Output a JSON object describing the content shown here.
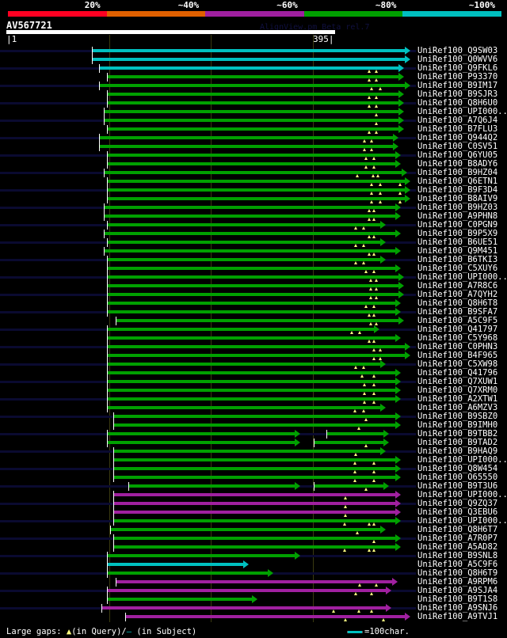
{
  "identity_scale": [
    {
      "label": "20%",
      "color": "#ff0022"
    },
    {
      "label": "~40%",
      "color": "#e06000"
    },
    {
      "label": "~60%",
      "color": "#a020a0"
    },
    {
      "label": "~80%",
      "color": "#00a000"
    },
    {
      "label": "~100%",
      "color": "#00c0c0"
    }
  ],
  "query": {
    "name": "AV567721",
    "start": "1",
    "end": "395"
  },
  "version_text": "AlignView.pm Beta rel.7",
  "legend": {
    "prefix": "Large gaps: ",
    "query_symbol": "▲",
    "query_text": "(in Query)/",
    "subject_symbol": "—",
    "subject_text": " (in Subject)",
    "scale_label": "=100char."
  },
  "colors": {
    "cyan": "#00c0c0",
    "green": "#00a000",
    "magenta": "#a020a0"
  },
  "hits": [
    {
      "label": "UniRef100_Q9SW03",
      "color": "cyan",
      "segs": [
        [
          83,
          390
        ]
      ],
      "gaps": []
    },
    {
      "label": "UniRef100_Q0WVV6",
      "color": "cyan",
      "segs": [
        [
          83,
          390
        ]
      ],
      "gaps": []
    },
    {
      "label": "UniRef100_Q9FKL6",
      "color": "cyan",
      "segs": [
        [
          90,
          384
        ]
      ],
      "gaps": [
        355,
        362
      ]
    },
    {
      "label": "UniRef100_P93370",
      "color": "green",
      "segs": [
        [
          98,
          384
        ]
      ],
      "gaps": [
        355,
        362
      ]
    },
    {
      "label": "UniRef100_B9IM17",
      "color": "green",
      "segs": [
        [
          90,
          390
        ]
      ],
      "gaps": [
        358,
        366
      ]
    },
    {
      "label": "UniRef100_B9SJR3",
      "color": "green",
      "segs": [
        [
          98,
          384
        ]
      ],
      "gaps": [
        355,
        362
      ]
    },
    {
      "label": "UniRef100_Q8H6U0",
      "color": "green",
      "segs": [
        [
          98,
          384
        ]
      ],
      "gaps": [
        355,
        362
      ]
    },
    {
      "label": "UniRef100_UPI000..",
      "color": "green",
      "segs": [
        [
          95,
          384
        ]
      ],
      "gaps": [
        362
      ]
    },
    {
      "label": "UniRef100_A7Q6J4",
      "color": "green",
      "segs": [
        [
          95,
          384
        ]
      ],
      "gaps": [
        362
      ]
    },
    {
      "label": "UniRef100_B7FLU3",
      "color": "green",
      "segs": [
        [
          98,
          384
        ]
      ],
      "gaps": [
        355,
        362
      ]
    },
    {
      "label": "UniRef100_Q944Q2",
      "color": "green",
      "segs": [
        [
          90,
          379
        ]
      ],
      "gaps": [
        351,
        358
      ]
    },
    {
      "label": "UniRef100_C0SV51",
      "color": "green",
      "segs": [
        [
          90,
          379
        ]
      ],
      "gaps": [
        351,
        358
      ]
    },
    {
      "label": "UniRef100_Q6YU05",
      "color": "green",
      "segs": [
        [
          98,
          381
        ]
      ],
      "gaps": [
        352,
        360
      ]
    },
    {
      "label": "UniRef100_B8ADY6",
      "color": "green",
      "segs": [
        [
          98,
          381
        ]
      ],
      "gaps": [
        352,
        360
      ]
    },
    {
      "label": "UniRef100_B9HZ04",
      "color": "green",
      "segs": [
        [
          95,
          387
        ]
      ],
      "gaps": [
        344,
        359,
        364
      ]
    },
    {
      "label": "UniRef100_Q6ETN1",
      "color": "green",
      "segs": [
        [
          98,
          390
        ]
      ],
      "gaps": [
        358,
        366,
        386
      ]
    },
    {
      "label": "UniRef100_B9F3D4",
      "color": "green",
      "segs": [
        [
          98,
          390
        ]
      ],
      "gaps": [
        358,
        366,
        386
      ]
    },
    {
      "label": "UniRef100_B8AIV9",
      "color": "green",
      "segs": [
        [
          98,
          390
        ]
      ],
      "gaps": [
        358,
        366,
        386
      ]
    },
    {
      "label": "UniRef100_B9HZ03",
      "color": "green",
      "segs": [
        [
          95,
          381
        ]
      ],
      "gaps": [
        355,
        360
      ]
    },
    {
      "label": "UniRef100_A9PHN8",
      "color": "green",
      "segs": [
        [
          95,
          381
        ]
      ],
      "gaps": [
        355,
        360
      ]
    },
    {
      "label": "UniRef100_C0PGN9",
      "color": "green",
      "segs": [
        [
          98,
          366
        ]
      ],
      "gaps": [
        342,
        350
      ]
    },
    {
      "label": "UniRef100_B9P5X9",
      "color": "green",
      "segs": [
        [
          95,
          381
        ]
      ],
      "gaps": [
        355,
        360
      ]
    },
    {
      "label": "UniRef100_B6UE51",
      "color": "green",
      "segs": [
        [
          98,
          366
        ]
      ],
      "gaps": [
        342,
        350
      ]
    },
    {
      "label": "UniRef100_Q9M451",
      "color": "green",
      "segs": [
        [
          95,
          381
        ]
      ],
      "gaps": [
        355,
        360
      ]
    },
    {
      "label": "UniRef100_B6TKI3",
      "color": "green",
      "segs": [
        [
          98,
          366
        ]
      ],
      "gaps": [
        342,
        350
      ]
    },
    {
      "label": "UniRef100_C5XUY6",
      "color": "green",
      "segs": [
        [
          98,
          381
        ]
      ],
      "gaps": [
        352,
        360
      ]
    },
    {
      "label": "UniRef100_UPI000..",
      "color": "green",
      "segs": [
        [
          98,
          384
        ]
      ],
      "gaps": [
        357,
        362
      ]
    },
    {
      "label": "UniRef100_A7R8C6",
      "color": "green",
      "segs": [
        [
          98,
          384
        ]
      ],
      "gaps": [
        357,
        362
      ]
    },
    {
      "label": "UniRef100_A7QYH2",
      "color": "green",
      "segs": [
        [
          98,
          384
        ]
      ],
      "gaps": [
        357,
        362
      ]
    },
    {
      "label": "UniRef100_Q8H6T8",
      "color": "green",
      "segs": [
        [
          98,
          381
        ]
      ],
      "gaps": [
        352,
        360
      ]
    },
    {
      "label": "UniRef100_B9SFA7",
      "color": "green",
      "segs": [
        [
          98,
          381
        ]
      ],
      "gaps": [
        355,
        360
      ]
    },
    {
      "label": "UniRef100_A5C9F5",
      "color": "green",
      "segs": [
        [
          107,
          384
        ]
      ],
      "gaps": [
        357,
        362
      ]
    },
    {
      "label": "UniRef100_Q41797",
      "color": "green",
      "segs": [
        [
          98,
          360
        ]
      ],
      "gaps": [
        338,
        346
      ]
    },
    {
      "label": "UniRef100_C5Y968",
      "color": "green",
      "segs": [
        [
          98,
          381
        ]
      ],
      "gaps": [
        355,
        360
      ]
    },
    {
      "label": "UniRef100_C0PHN3",
      "color": "green",
      "segs": [
        [
          98,
          390
        ]
      ],
      "gaps": [
        360,
        366
      ]
    },
    {
      "label": "UniRef100_B4F965",
      "color": "green",
      "segs": [
        [
          98,
          390
        ]
      ],
      "gaps": [
        360,
        366
      ]
    },
    {
      "label": "UniRef100_C5XW98",
      "color": "green",
      "segs": [
        [
          98,
          366
        ]
      ],
      "gaps": [
        342,
        350
      ]
    },
    {
      "label": "UniRef100_Q41796",
      "color": "green",
      "segs": [
        [
          98,
          381
        ]
      ],
      "gaps": [
        348,
        360
      ]
    },
    {
      "label": "UniRef100_Q7XUW1",
      "color": "green",
      "segs": [
        [
          98,
          381
        ]
      ],
      "gaps": [
        351,
        360
      ]
    },
    {
      "label": "UniRef100_Q7XRM0",
      "color": "green",
      "segs": [
        [
          98,
          381
        ]
      ],
      "gaps": [
        351,
        360
      ]
    },
    {
      "label": "UniRef100_A2XTW1",
      "color": "green",
      "segs": [
        [
          98,
          381
        ]
      ],
      "gaps": [
        351,
        360
      ]
    },
    {
      "label": "UniRef100_A6MZV3",
      "color": "green",
      "segs": [
        [
          98,
          366
        ]
      ],
      "gaps": [
        341,
        350
      ]
    },
    {
      "label": "UniRef100_B9SBZ0",
      "color": "green",
      "segs": [
        [
          104,
          381
        ]
      ],
      "gaps": [
        352
      ]
    },
    {
      "label": "UniRef100_B9IMH0",
      "color": "green",
      "segs": [
        [
          104,
          381
        ]
      ],
      "gaps": [
        345
      ]
    },
    {
      "label": "UniRef100_B9TBB2",
      "color": "green",
      "segs": [
        [
          98,
          282
        ],
        [
          313,
          369
        ]
      ],
      "gaps": []
    },
    {
      "label": "UniRef100_B9TAD2",
      "color": "green",
      "segs": [
        [
          98,
          282
        ],
        [
          301,
          369
        ]
      ],
      "gaps": [
        352
      ]
    },
    {
      "label": "UniRef100_B9HAQ9",
      "color": "green",
      "segs": [
        [
          104,
          366
        ]
      ],
      "gaps": [
        342
      ]
    },
    {
      "label": "UniRef100_UPI000..",
      "color": "green",
      "segs": [
        [
          104,
          381
        ]
      ],
      "gaps": [
        341,
        360
      ]
    },
    {
      "label": "UniRef100_Q8W454",
      "color": "green",
      "segs": [
        [
          104,
          381
        ]
      ],
      "gaps": [
        341,
        360
      ]
    },
    {
      "label": "UniRef100_O65550",
      "color": "green",
      "segs": [
        [
          104,
          381
        ]
      ],
      "gaps": [
        341,
        360
      ]
    },
    {
      "label": "UniRef100_B9T3U6",
      "color": "green",
      "segs": [
        [
          119,
          282
        ],
        [
          301,
          369
        ]
      ],
      "gaps": [
        352
      ]
    },
    {
      "label": "UniRef100_UPI000..",
      "color": "magenta",
      "segs": [
        [
          104,
          381
        ]
      ],
      "gaps": [
        332
      ]
    },
    {
      "label": "UniRef100_Q9ZQ37",
      "color": "magenta",
      "segs": [
        [
          104,
          381
        ]
      ],
      "gaps": [
        332
      ]
    },
    {
      "label": "UniRef100_Q3EBU6",
      "color": "magenta",
      "segs": [
        [
          104,
          381
        ]
      ],
      "gaps": [
        332
      ]
    },
    {
      "label": "UniRef100_UPI000..",
      "color": "green",
      "segs": [
        [
          104,
          381
        ]
      ],
      "gaps": [
        331,
        355,
        360
      ]
    },
    {
      "label": "UniRef100_Q8H6T7",
      "color": "green",
      "segs": [
        [
          101,
          366
        ]
      ],
      "gaps": [
        344
      ]
    },
    {
      "label": "UniRef100_A7R0P7",
      "color": "green",
      "segs": [
        [
          104,
          381
        ]
      ],
      "gaps": [
        360
      ]
    },
    {
      "label": "UniRef100_A5AD82",
      "color": "green",
      "segs": [
        [
          104,
          381
        ]
      ],
      "gaps": [
        331,
        355,
        360
      ]
    },
    {
      "label": "UniRef100_B9SNL8",
      "color": "green",
      "segs": [
        [
          98,
          282
        ]
      ],
      "gaps": []
    },
    {
      "label": "UniRef100_A5C9F6",
      "color": "cyan",
      "segs": [
        [
          98,
          232
        ]
      ],
      "gaps": []
    },
    {
      "label": "UniRef100_Q8H6T9",
      "color": "green",
      "segs": [
        [
          98,
          256
        ]
      ],
      "gaps": []
    },
    {
      "label": "UniRef100_A9RPM6",
      "color": "magenta",
      "segs": [
        [
          107,
          378
        ]
      ],
      "gaps": [
        346,
        362
      ]
    },
    {
      "label": "UniRef100_A9SJA4",
      "color": "magenta",
      "segs": [
        [
          98,
          372
        ]
      ],
      "gaps": [
        342,
        358
      ]
    },
    {
      "label": "UniRef100_B9T1S8",
      "color": "green",
      "segs": [
        [
          98,
          240
        ]
      ],
      "gaps": []
    },
    {
      "label": "UniRef100_A9SNJ6",
      "color": "magenta",
      "segs": [
        [
          93,
          372
        ]
      ],
      "gaps": [
        320,
        345,
        358
      ]
    },
    {
      "label": "UniRef100_A9TVJ1",
      "color": "magenta",
      "segs": [
        [
          116,
          390
        ]
      ],
      "gaps": [
        332,
        369
      ]
    }
  ]
}
